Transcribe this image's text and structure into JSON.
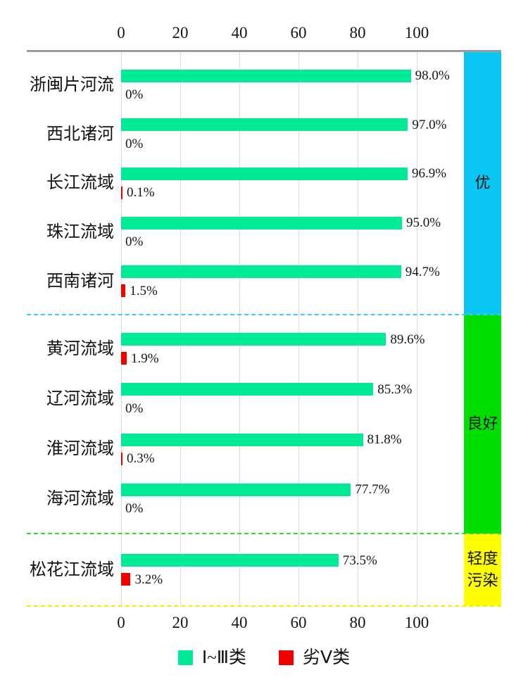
{
  "colors": {
    "green_bar": "#00EB95",
    "red_bar": "#F20000",
    "band_excellent": "#0AC6F2",
    "band_good": "#00E000",
    "band_light_pollution": "#FFFF00",
    "divider_excellent": "#3FC9F0",
    "divider_good": "#30D930",
    "divider_light_pollution": "#EDED00",
    "axis_line": "#9C9C9C",
    "gridline": "#DBDBDB"
  },
  "chart_data": {
    "type": "bar",
    "orientation": "horizontal",
    "title": "",
    "xlabel": "",
    "ylabel": "",
    "xlim": [
      0,
      116
    ],
    "x_ticks": [
      0,
      20,
      40,
      60,
      80,
      100
    ],
    "grid": true,
    "legend_position": "bottom",
    "categories": [
      "浙闽片河流",
      "西北诸河",
      "长江流域",
      "珠江流域",
      "西南诸河",
      "黄河流域",
      "辽河流域",
      "淮河流域",
      "海河流域",
      "松花江流域"
    ],
    "series": [
      {
        "name": "Ⅰ~Ⅲ类",
        "color": "#00EB95",
        "values": [
          98.0,
          97.0,
          96.9,
          95.0,
          94.7,
          89.6,
          85.3,
          81.8,
          77.7,
          73.5
        ],
        "labels": [
          "98.0%",
          "97.0%",
          "96.9%",
          "95.0%",
          "94.7%",
          "89.6%",
          "85.3%",
          "81.8%",
          "77.7%",
          "73.5%"
        ]
      },
      {
        "name": "劣Ⅴ类",
        "color": "#F20000",
        "values": [
          0,
          0,
          0.1,
          0,
          1.5,
          1.9,
          0,
          0.3,
          0,
          3.2
        ],
        "labels": [
          "0%",
          "0%",
          "0.1%",
          "0%",
          "1.5%",
          "1.9%",
          "0%",
          "0.3%",
          "0%",
          "3.2%"
        ]
      }
    ],
    "bands": [
      {
        "key": "excellent",
        "label": "优",
        "label_lines": [
          "优"
        ],
        "color": "#0AC6F2",
        "divider_color": "#3FC9F0",
        "row_start": 0,
        "row_count": 5
      },
      {
        "key": "good",
        "label": "良好",
        "label_lines": [
          "良好"
        ],
        "color": "#00E000",
        "divider_color": "#30D930",
        "row_start": 5,
        "row_count": 4
      },
      {
        "key": "light-pollution",
        "label": "轻度污染",
        "label_lines": [
          "轻度",
          "污染"
        ],
        "color": "#FFFF00",
        "divider_color": "#EDED00",
        "row_start": 9,
        "row_count": 1
      }
    ]
  }
}
